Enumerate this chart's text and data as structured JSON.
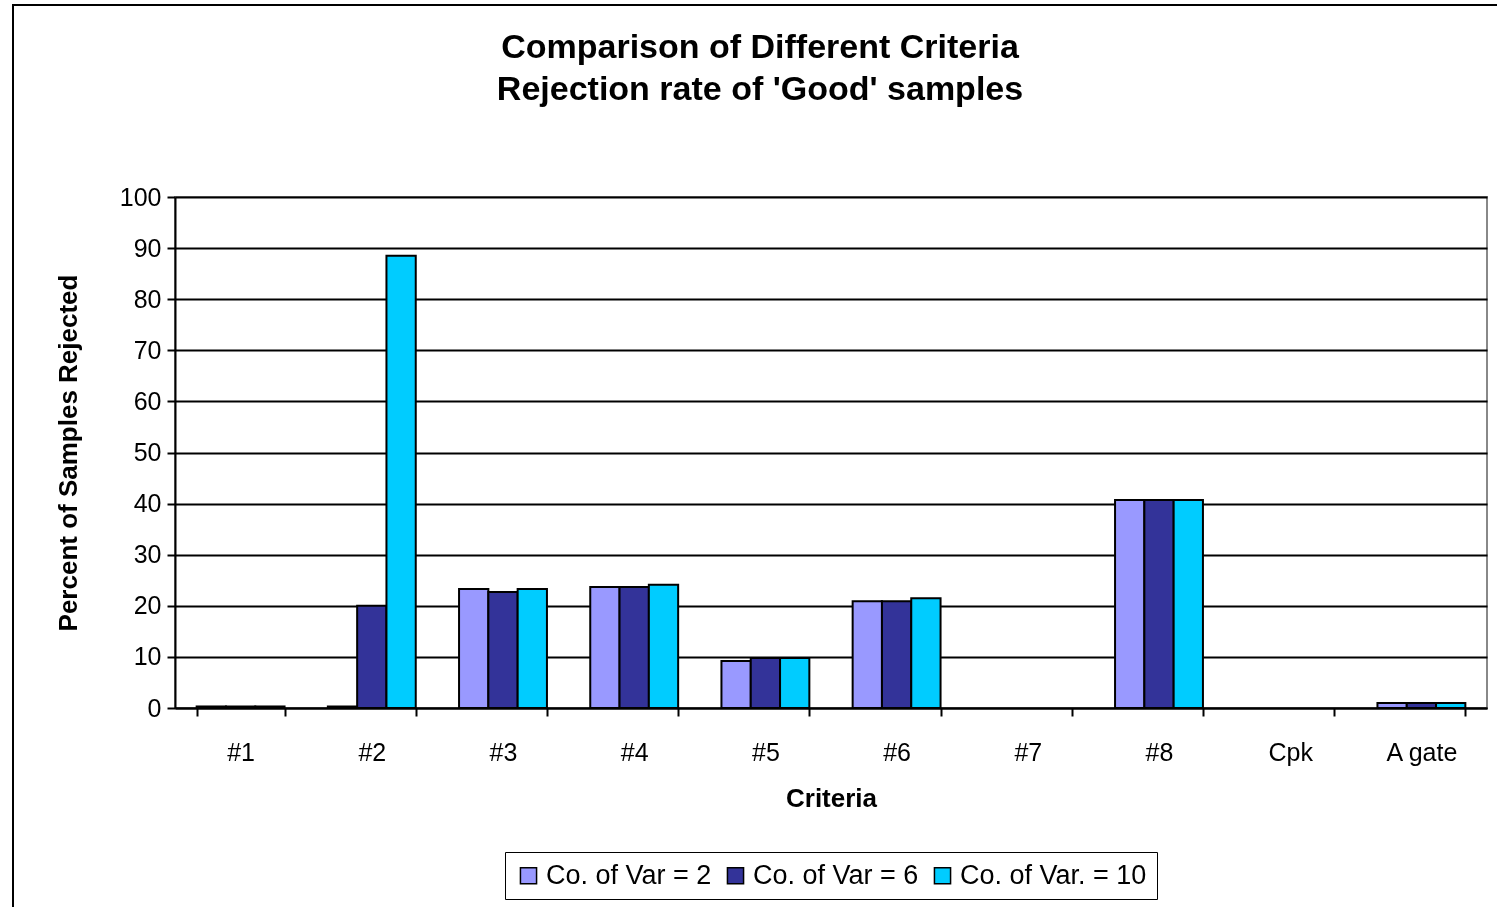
{
  "chart_data": {
    "type": "bar",
    "title": "Comparison of Different Criteria",
    "subtitle": "Rejection rate of 'Good' samples",
    "xlabel": "Criteria",
    "ylabel": "Percent of Samples Rejected",
    "categories": [
      "#1",
      "#2",
      "#3",
      "#4",
      "#5",
      "#6",
      "#7",
      "#8",
      "Cpk",
      "A gate"
    ],
    "series": [
      {
        "name": "Co. of Var = 2",
        "color": "#9999ff",
        "values": [
          0.3,
          0.3,
          23.3,
          23.7,
          9.2,
          20.9,
          null,
          40.7,
          null,
          1.0
        ]
      },
      {
        "name": "Co. of Var = 6",
        "color": "#333399",
        "values": [
          0.3,
          20,
          22.7,
          23.7,
          9.8,
          20.9,
          null,
          40.7,
          null,
          1.0
        ]
      },
      {
        "name": "Co. of Var. = 10",
        "color": "#00ccff",
        "values": [
          0.3,
          88.5,
          23.3,
          24.1,
          9.8,
          21.5,
          null,
          40.7,
          null,
          1.0
        ]
      }
    ],
    "ylim": [
      0,
      100
    ],
    "yticks": [
      0,
      10,
      20,
      30,
      40,
      50,
      60,
      70,
      80,
      90,
      100
    ],
    "grid": "y",
    "legend": "bottom"
  }
}
